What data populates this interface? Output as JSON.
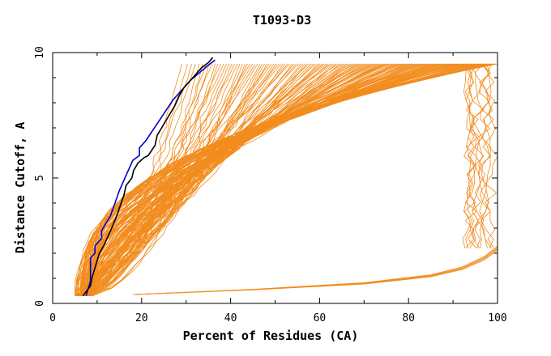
{
  "chart_data": {
    "type": "line",
    "title": "T1093-D3",
    "xlabel": "Percent of Residues (CA)",
    "ylabel": "Distance Cutoff, A",
    "xlim": [
      0,
      100
    ],
    "ylim": [
      0,
      10
    ],
    "x_ticks": [
      0,
      20,
      40,
      60,
      80,
      100
    ],
    "y_ticks": [
      0,
      5,
      10
    ],
    "grid": false,
    "legend": "none",
    "colors": {
      "models": "#f28c1e",
      "highlight_blue": "#0000cc",
      "highlight_black": "#000000",
      "axes": "#000000"
    },
    "series": [
      {
        "role": "highlight-blue",
        "x": [
          7.5,
          8.5,
          8.5,
          9.5,
          9.5,
          11,
          11,
          13,
          14,
          15,
          16,
          17,
          18,
          19.5,
          19.5,
          21,
          22.5,
          24,
          25.5,
          27,
          29,
          31,
          33,
          35,
          36.5
        ],
        "y": [
          0.3,
          0.9,
          1.8,
          2.0,
          2.3,
          2.6,
          2.9,
          3.5,
          4.0,
          4.5,
          4.9,
          5.3,
          5.7,
          5.9,
          6.2,
          6.5,
          6.9,
          7.3,
          7.7,
          8.1,
          8.5,
          8.9,
          9.2,
          9.5,
          9.7
        ]
      },
      {
        "role": "highlight-black",
        "x": [
          6.8,
          8.5,
          8.8,
          10.5,
          11.5,
          12.5,
          13.5,
          14.2,
          14.8,
          15.2,
          16.0,
          16.5,
          17.8,
          18.2,
          19.2,
          20.5,
          21.5,
          23.0,
          23.5,
          24.5,
          25.5,
          26.5,
          27.5,
          28.5,
          29.5,
          31.0,
          32.0,
          33.5,
          35.0,
          36.0
        ],
        "y": [
          0.3,
          0.7,
          1.0,
          2.0,
          2.3,
          2.7,
          3.1,
          3.4,
          3.7,
          3.9,
          4.3,
          4.7,
          5.0,
          5.3,
          5.6,
          5.8,
          5.9,
          6.3,
          6.7,
          7.0,
          7.3,
          7.6,
          7.9,
          8.3,
          8.6,
          8.9,
          9.1,
          9.4,
          9.6,
          9.8
        ]
      },
      {
        "role": "models-lower-branch",
        "x": [
          18,
          45,
          70,
          85,
          92,
          97,
          100
        ],
        "y": [
          0.35,
          0.55,
          0.8,
          1.1,
          1.4,
          1.8,
          2.2
        ]
      }
    ]
  }
}
